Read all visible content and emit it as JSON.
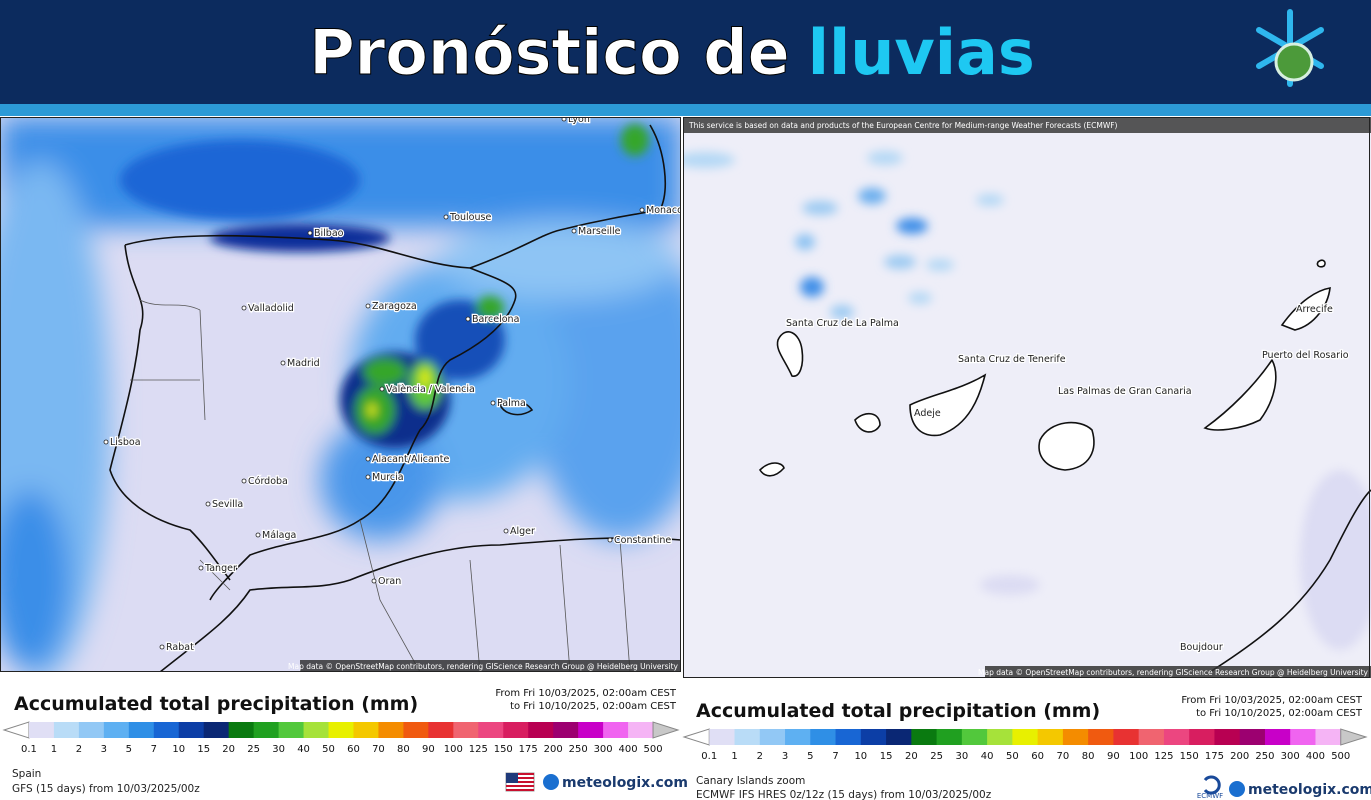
{
  "header": {
    "title_start": "Pronóstico de",
    "title_highlight": "lluvias"
  },
  "panels": [
    {
      "map": {
        "labels": [
          "Lyon",
          "Bilbao",
          "Toulouse",
          "Marseille",
          "Monaco",
          "Valladolid",
          "Zaragoza",
          "Barcelona",
          "Madrid",
          "València / Valencia",
          "Palma",
          "Lisboa",
          "Córdoba",
          "Alacant/Alicante",
          "Murcia",
          "Sevilla",
          "Málaga",
          "Tanger",
          "Alger",
          "Constantine",
          "Oran",
          "Rabat"
        ],
        "attribution": "Map data © OpenStreetMap contributors, rendering GIScience Research Group @ Heidelberg University"
      },
      "legend": {
        "title": "Accumulated total precipitation (mm)",
        "from": "From Fri 10/03/2025, 02:00am CEST",
        "to": "to Fri 10/10/2025, 02:00am CEST",
        "ticks": [
          "0.1",
          "1",
          "2",
          "3",
          "5",
          "7",
          "10",
          "15",
          "20",
          "25",
          "30",
          "40",
          "50",
          "60",
          "70",
          "80",
          "90",
          "100",
          "125",
          "150",
          "175",
          "200",
          "250",
          "300",
          "400",
          "500"
        ]
      },
      "footer": {
        "region": "Spain",
        "model": "GFS (15 days) from 10/03/2025/00z",
        "brand": "meteologix.com"
      }
    },
    {
      "map": {
        "notice": "This service is based on data and products of the European Centre for Medium-range Weather Forecasts (ECMWF)",
        "labels": [
          "Santa Cruz de La Palma",
          "Santa Cruz de Tenerife",
          "Las Palmas de Gran Canaria",
          "Arrecife",
          "Puerto del Rosario",
          "Adeje",
          "Boujdour"
        ],
        "attribution": "Map data © OpenStreetMap contributors, rendering GIScience Research Group @ Heidelberg University"
      },
      "legend": {
        "title": "Accumulated total precipitation (mm)",
        "from": "From Fri 10/03/2025, 02:00am CEST",
        "to": "to Fri 10/10/2025, 02:00am CEST",
        "ticks": [
          "0.1",
          "1",
          "2",
          "3",
          "5",
          "7",
          "10",
          "15",
          "20",
          "25",
          "30",
          "40",
          "50",
          "60",
          "70",
          "80",
          "90",
          "100",
          "125",
          "150",
          "175",
          "200",
          "250",
          "300",
          "400",
          "500"
        ]
      },
      "footer": {
        "region": "Canary Islands zoom",
        "model": "ECMWF IFS HRES 0z/12z (15 days) from 10/03/2025/00z",
        "brand": "meteologix.com",
        "logo": "ECMWF"
      }
    }
  ]
}
